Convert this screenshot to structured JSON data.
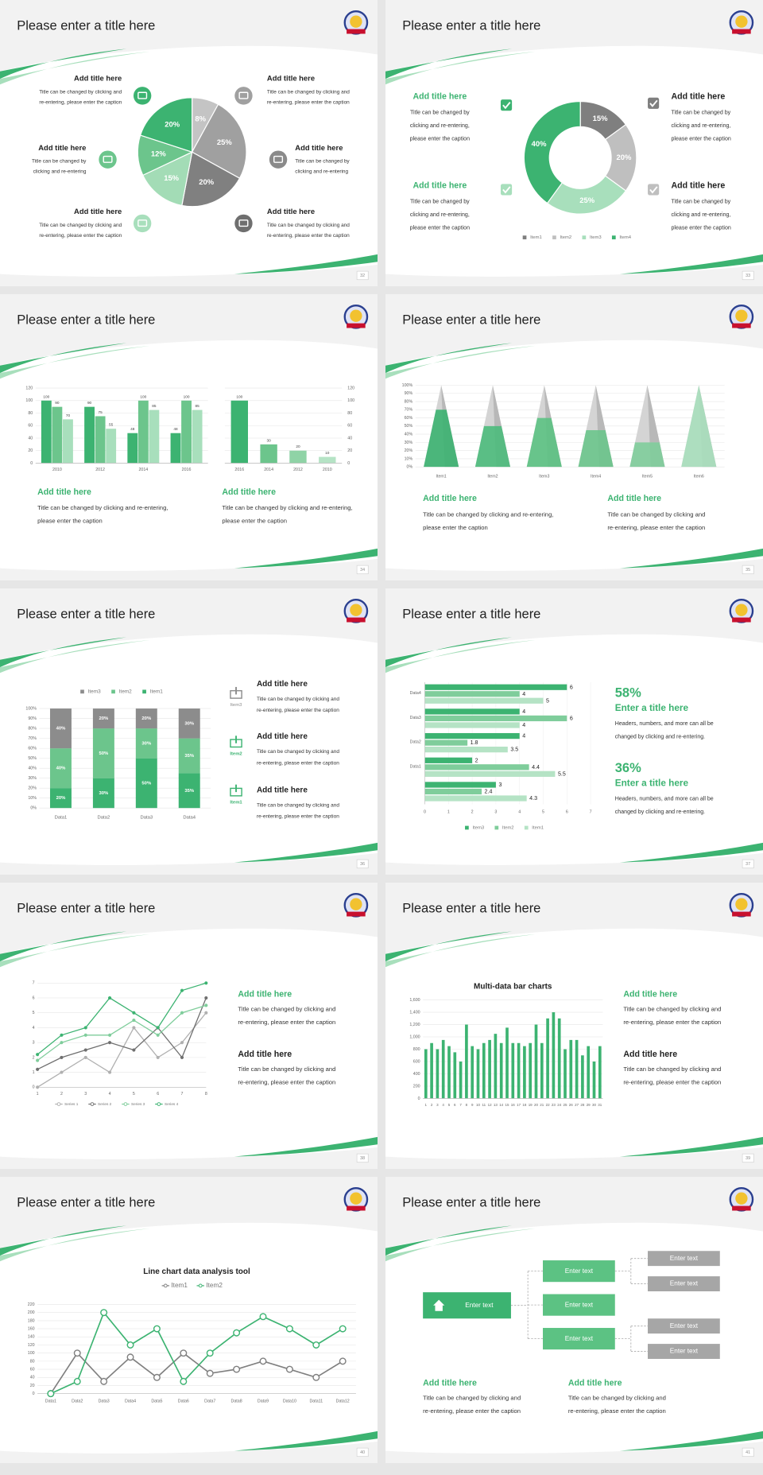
{
  "slides": [
    {
      "title": "Please enter a title here",
      "page": "32",
      "blocks": [
        {
          "heading": "Add title here",
          "lines": [
            "Title can be changed by clicking and",
            "re-entering, please enter the caption"
          ]
        },
        {
          "heading": "Add title here",
          "lines": [
            "Title can be changed by",
            "clicking and re-entering"
          ]
        },
        {
          "heading": "Add title here",
          "lines": [
            "Title can be changed by clicking and",
            "re-entering, please enter the caption"
          ]
        },
        {
          "heading": "Add title here",
          "lines": [
            "Title can be changed by clicking and",
            "re-entering, please enter the caption"
          ]
        },
        {
          "heading": "Add title here",
          "lines": [
            "Title can be changed by",
            "clicking and re-entering"
          ]
        },
        {
          "heading": "Add title here",
          "lines": [
            "Title can be changed by clicking and",
            "re-entering, please enter the caption"
          ]
        }
      ],
      "charts": [
        {
          "type": "pie",
          "values": [
            8,
            25,
            20,
            15,
            12,
            20
          ],
          "value_labels": [
            "8%",
            "25%",
            "20%",
            "15%",
            "12%",
            "20%"
          ],
          "colors": [
            "#c4c4c4",
            "#a0a0a0",
            "#808080",
            "#a3dcb6",
            "#6cc58c",
            "#3cb371"
          ]
        }
      ]
    },
    {
      "title": "Please enter a title here",
      "page": "33",
      "blocks": [
        {
          "heading": "Add title here",
          "lines": [
            "Title can be changed by",
            "clicking and re-entering,",
            "please enter the caption"
          ]
        },
        {
          "heading": "Add title here",
          "lines": [
            "Title can be changed by",
            "clicking and re-entering,",
            "please enter the caption"
          ]
        },
        {
          "heading": "Add title here",
          "lines": [
            "Title can be changed by",
            "clicking and re-entering,",
            "please enter the caption"
          ]
        },
        {
          "heading": "Add title here",
          "lines": [
            "Title can be changed by",
            "clicking and re-entering,",
            "please enter the caption"
          ]
        }
      ],
      "charts": [
        {
          "type": "donut",
          "categories": [
            "Item1",
            "Item2",
            "Item3",
            "Item4"
          ],
          "values": [
            15,
            20,
            25,
            40
          ],
          "value_labels": [
            "15%",
            "20%",
            "25%",
            "40%"
          ],
          "colors": [
            "#7f7f7f",
            "#bfbfbf",
            "#a8dfbc",
            "#3cb371"
          ],
          "legend": "bottom"
        }
      ]
    },
    {
      "title": "Please enter a title here",
      "page": "34",
      "blocks": [
        {
          "heading": "Add title here",
          "lines": [
            "Title can be changed by clicking and re-entering,",
            "please enter the caption"
          ]
        },
        {
          "heading": "Add title here",
          "lines": [
            "Title can be changed by clicking and re-entering,",
            "please enter the caption"
          ]
        }
      ],
      "charts": [
        {
          "type": "bar",
          "categories": [
            "2010",
            "2012",
            "2014",
            "2016"
          ],
          "data_labels": true,
          "series": [
            {
              "color": "#3cb371",
              "values": [
                100,
                90,
                48,
                48
              ]
            },
            {
              "color": "#6cc58c",
              "values": [
                90,
                75,
                100,
                100
              ]
            },
            {
              "color": "#a8dfbc",
              "values": [
                70,
                55,
                85,
                85
              ]
            }
          ],
          "ylim": [
            0,
            120
          ],
          "yticks": [
            0,
            20,
            40,
            60,
            80,
            100,
            120
          ],
          "y_axis_side": "left"
        },
        {
          "type": "bar",
          "categories": [
            "2016",
            "2014",
            "2012",
            "2010"
          ],
          "data_labels": true,
          "series": [
            {
              "colors": [
                "#3cb371",
                "#6cc58c",
                "#8fd3a6",
                "#b5e3c5"
              ],
              "values": [
                100,
                30,
                20,
                10
              ]
            }
          ],
          "ylim": [
            0,
            120
          ],
          "yticks": [
            0,
            20,
            40,
            60,
            80,
            100,
            120
          ],
          "y_axis_side": "right"
        }
      ]
    },
    {
      "title": "Please enter a title here",
      "page": "35",
      "blocks": [
        {
          "heading": "Add title here",
          "lines": [
            "Title can be changed by clicking and re-entering,",
            "please enter the caption"
          ]
        },
        {
          "heading": "Add title here",
          "lines": [
            "Title can be changed by clicking and",
            "re-entering, please enter the caption"
          ]
        }
      ],
      "charts": [
        {
          "type": "pyramid",
          "categories": [
            "Item1",
            "Item2",
            "Item3",
            "Item4",
            "Item5",
            "Item6"
          ],
          "values": [
            70,
            50,
            60,
            45,
            30,
            100
          ],
          "colors": [
            "#3cb371",
            "#4dbb7c",
            "#5cc283",
            "#6cc58c",
            "#7fcd9b",
            "#a8dfbc"
          ],
          "ylim": [
            0,
            100
          ],
          "yticks": [
            {
              "value": 0,
              "label": "0%"
            },
            {
              "value": 10,
              "label": "10%"
            },
            {
              "value": 20,
              "label": "20%"
            },
            {
              "value": 30,
              "label": "30%"
            },
            {
              "value": 40,
              "label": "40%"
            },
            {
              "value": 50,
              "label": "50%"
            },
            {
              "value": 60,
              "label": "60%"
            },
            {
              "value": 70,
              "label": "70%"
            },
            {
              "value": 80,
              "label": "80%"
            },
            {
              "value": 90,
              "label": "90%"
            },
            {
              "value": 100,
              "label": "100%"
            }
          ]
        }
      ]
    },
    {
      "title": "Please enter a title here",
      "page": "36",
      "item_labels": [
        "Item3",
        "Item2",
        "Item1"
      ],
      "blocks": [
        {
          "heading": "Add title here",
          "lines": [
            "Title can be changed by clicking and",
            "re-entering, please enter the caption"
          ]
        },
        {
          "heading": "Add title here",
          "lines": [
            "Title can be changed by clicking and",
            "re-entering, please enter the caption"
          ]
        },
        {
          "heading": "Add title here",
          "lines": [
            "Title can be changed by clicking and",
            "re-entering, please enter the caption"
          ]
        }
      ],
      "charts": [
        {
          "type": "stacked_percent",
          "categories": [
            "Data1",
            "Data2",
            "Data3",
            "Data4"
          ],
          "legend": "top",
          "series": [
            {
              "name": "Item3",
              "color": "#8c8c8c",
              "values": [
                40,
                20,
                20,
                30
              ],
              "value_labels": [
                "40%",
                "20%",
                "20%",
                "30%"
              ]
            },
            {
              "name": "Item2",
              "color": "#6cc58c",
              "values": [
                40,
                50,
                30,
                35
              ],
              "value_labels": [
                "40%",
                "50%",
                "30%",
                "35%"
              ]
            },
            {
              "name": "Item1",
              "color": "#3cb371",
              "values": [
                20,
                30,
                50,
                35
              ],
              "value_labels": [
                "20%",
                "30%",
                "50%",
                "35%"
              ]
            }
          ],
          "ylim": [
            0,
            100
          ],
          "yticks": [
            {
              "value": 0,
              "label": "0%"
            },
            {
              "value": 10,
              "label": "10%"
            },
            {
              "value": 20,
              "label": "20%"
            },
            {
              "value": 30,
              "label": "30%"
            },
            {
              "value": 40,
              "label": "40%"
            },
            {
              "value": 50,
              "label": "50%"
            },
            {
              "value": 60,
              "label": "60%"
            },
            {
              "value": 70,
              "label": "70%"
            },
            {
              "value": 80,
              "label": "80%"
            },
            {
              "value": 90,
              "label": "90%"
            },
            {
              "value": 100,
              "label": "100%"
            }
          ]
        }
      ]
    },
    {
      "title": "Please enter a title here",
      "page": "37",
      "stats": [
        {
          "figure": "58%",
          "heading": "Enter a title here",
          "lines": [
            "Headers, numbers, and more can all be",
            "changed by clicking and re-entering."
          ]
        },
        {
          "figure": "36%",
          "heading": "Enter a title here",
          "lines": [
            "Headers, numbers, and more can all be",
            "changed by clicking and re-entering."
          ]
        }
      ],
      "charts": [
        {
          "type": "hbar",
          "categories": [
            null,
            "Data1",
            "Data2",
            "Data3",
            "Data4"
          ],
          "legend": "bottom",
          "series": [
            {
              "name": "Item3",
              "color": "#3cb371",
              "values": [
                3,
                2,
                4,
                4,
                6
              ]
            },
            {
              "name": "Item2",
              "color": "#7fcd9b",
              "values": [
                2.4,
                4.4,
                1.8,
                6,
                4
              ]
            },
            {
              "name": "Item1",
              "color": "#b5e3c5",
              "values": [
                4.3,
                5.5,
                3.5,
                4,
                5
              ]
            }
          ],
          "xlim": [
            0,
            7
          ],
          "xticks": [
            0,
            1,
            2,
            3,
            4,
            5,
            6,
            7
          ]
        }
      ]
    },
    {
      "title": "Please enter a title here",
      "page": "38",
      "blocks": [
        {
          "heading": "Add title here",
          "lines": [
            "Title can be changed by clicking and",
            "re-entering, please enter the caption"
          ]
        },
        {
          "heading": "Add title here",
          "lines": [
            "Title can be changed by clicking and",
            "re-entering, please enter the caption"
          ]
        }
      ],
      "charts": [
        {
          "type": "line",
          "x": [
            1,
            2,
            3,
            4,
            5,
            6,
            7,
            8
          ],
          "xlim": [
            1,
            8
          ],
          "xticks": [
            1,
            2,
            3,
            4,
            5,
            6,
            7,
            8
          ],
          "ylim": [
            0,
            7
          ],
          "yticks": [
            0,
            1,
            2,
            3,
            4,
            5,
            6,
            7
          ],
          "markers": "filled",
          "legend": "bottom",
          "series": [
            {
              "name": "Series 1",
              "color": "#b0b0b0",
              "values": [
                0,
                1,
                2,
                1,
                4,
                2,
                3,
                5
              ]
            },
            {
              "name": "Series 2",
              "color": "#6f6f6f",
              "values": [
                1.2,
                2,
                2.5,
                3,
                2.5,
                4,
                2,
                6
              ]
            },
            {
              "name": "Series 3",
              "color": "#7fcd9b",
              "values": [
                1.8,
                3,
                3.5,
                3.5,
                4.5,
                3.5,
                5,
                5.5
              ]
            },
            {
              "name": "Series 4",
              "color": "#3cb371",
              "values": [
                2.2,
                3.5,
                4,
                6,
                5,
                4,
                6.5,
                7
              ]
            }
          ]
        }
      ]
    },
    {
      "title": "Please enter a title here",
      "page": "39",
      "blocks": [
        {
          "heading": "Add title here",
          "lines": [
            "Title can be changed by clicking and",
            "re-entering, please enter the caption"
          ]
        },
        {
          "heading": "Add title here",
          "lines": [
            "Title can be changed by clicking and",
            "re-entering, please enter the caption"
          ]
        }
      ],
      "charts": [
        {
          "type": "bar",
          "title": "Multi-data bar charts",
          "categories": [
            "1",
            "2",
            "3",
            "4",
            "5",
            "6",
            "7",
            "8",
            "9",
            "10",
            "11",
            "12",
            "13",
            "14",
            "15",
            "16",
            "17",
            "18",
            "19",
            "20",
            "21",
            "22",
            "23",
            "24",
            "25",
            "26",
            "27",
            "28",
            "29",
            "30",
            "31"
          ],
          "series": [
            {
              "color": "#3cb371",
              "values": [
                800,
                900,
                800,
                950,
                850,
                750,
                600,
                1200,
                850,
                800,
                900,
                950,
                1050,
                900,
                1150,
                900,
                900,
                850,
                900,
                1200,
                900,
                1300,
                1400,
                1300,
                800,
                950,
                950,
                700,
                850,
                600,
                850
              ]
            }
          ],
          "ylim": [
            0,
            1600
          ],
          "yticks": [
            0,
            200,
            400,
            600,
            800,
            {
              "value": 1000,
              "label": "1,000"
            },
            {
              "value": 1200,
              "label": "1,200"
            },
            {
              "value": 1400,
              "label": "1,400"
            },
            {
              "value": 1600,
              "label": "1,600"
            }
          ],
          "y_axis_side": "left"
        }
      ]
    },
    {
      "title": "Please enter a title here",
      "page": "40",
      "charts": [
        {
          "type": "line",
          "title": "Line chart data analysis tool",
          "categories": [
            "Data1",
            "Data2",
            "Data3",
            "Data4",
            "Data5",
            "Data6",
            "Data7",
            "Data8",
            "Data9",
            "Data10",
            "Data11",
            "Data12"
          ],
          "ylim": [
            0,
            220
          ],
          "yticks": [
            0,
            20,
            40,
            60,
            80,
            100,
            120,
            140,
            160,
            180,
            200,
            220
          ],
          "markers": "open",
          "legend": "top",
          "series": [
            {
              "name": "Item1",
              "color": "#7f7f7f",
              "values": [
                0,
                100,
                30,
                90,
                40,
                100,
                50,
                60,
                80,
                60,
                40,
                80
              ]
            },
            {
              "name": "Item2",
              "color": "#3cb371",
              "values": [
                0,
                30,
                200,
                120,
                160,
                30,
                100,
                150,
                190,
                160,
                120,
                160
              ]
            }
          ]
        }
      ]
    },
    {
      "title": "Please enter a title here",
      "page": "41",
      "diagram": {
        "root": "Enter text",
        "middle": [
          "Enter text",
          "Enter text",
          "Enter text"
        ],
        "leaves": [
          "Enter text",
          "Enter text",
          "Enter text",
          "Enter text"
        ]
      },
      "blocks": [
        {
          "heading": "Add title here",
          "lines": [
            "Title can be changed by clicking and",
            "re-entering, please enter the caption"
          ]
        },
        {
          "heading": "Add title here",
          "lines": [
            "Title can be changed by clicking and",
            "re-entering, please enter the caption"
          ]
        }
      ]
    }
  ]
}
